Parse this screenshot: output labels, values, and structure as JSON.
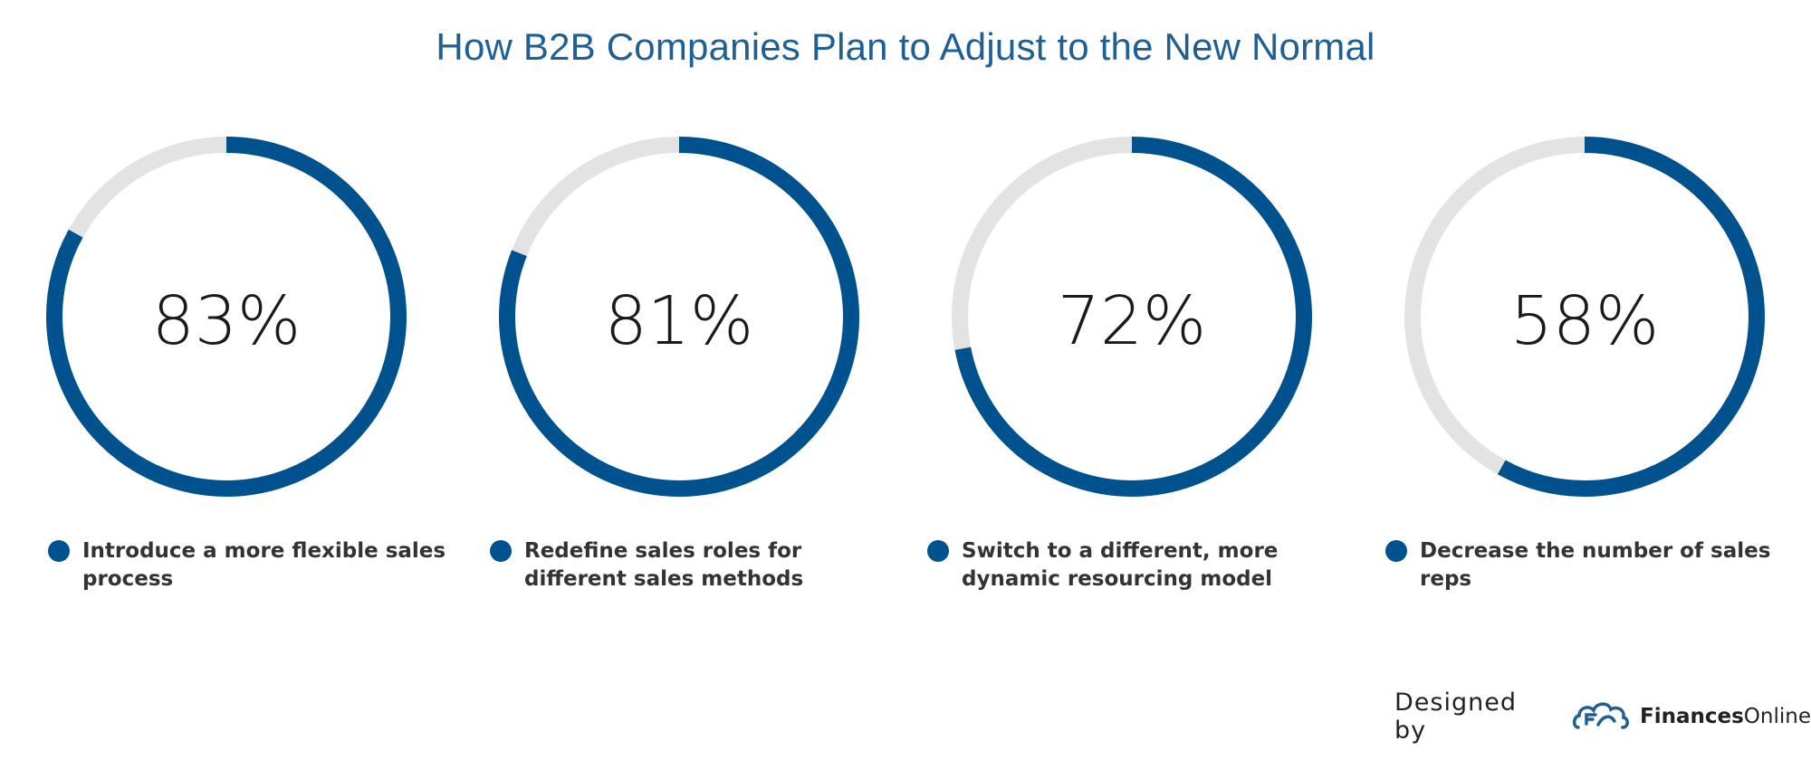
{
  "chart_data": {
    "type": "donut",
    "title": "How B2B Companies Plan to Adjust to the New Normal",
    "colors": {
      "fill": "#00528f",
      "track": "#e3e3e3"
    },
    "items": [
      {
        "label": "Introduce a more flexible sales process",
        "value": 83,
        "display": "83%"
      },
      {
        "label": "Redefine sales roles for different sales methods",
        "value": 81,
        "display": "81%"
      },
      {
        "label": "Switch to a different, more dynamic resourcing model",
        "value": 72,
        "display": "72%"
      },
      {
        "label": "Decrease the number of sales reps",
        "value": 58,
        "display": "58%"
      }
    ]
  },
  "credit": {
    "designed_by": "Designed by",
    "brand_bold": "Finances",
    "brand_light": "Online",
    "logo_icon": "financesonline-cloud-logo-icon"
  }
}
